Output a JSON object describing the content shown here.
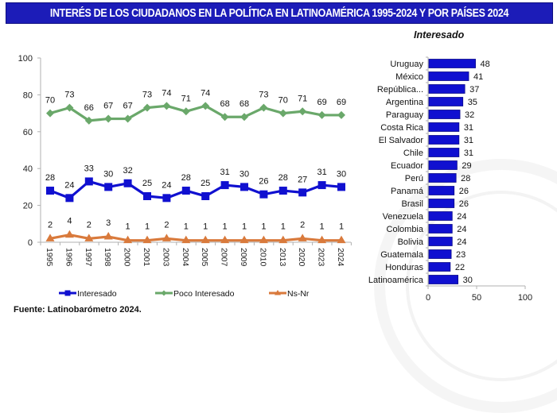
{
  "header": {
    "title": "INTERÉS DE LOS CIUDADANOS EN LA POLÍTICA EN LATINOAMÉRICA 1995-2024 Y POR PAÍSES 2024"
  },
  "footer": {
    "source": "Fuente: Latinobarómetro 2024."
  },
  "colors": {
    "title_bg": "#1c1cb8",
    "interesado": "#1010d0",
    "poco_interesado": "#6aa86a",
    "ns_nr": "#d97a3c"
  },
  "chart_data": [
    {
      "type": "line",
      "title": "",
      "xlabel": "",
      "ylabel": "",
      "ylim": [
        0,
        100
      ],
      "yticks": [
        0,
        20,
        40,
        60,
        80,
        100
      ],
      "grid": false,
      "legend_position": "bottom",
      "x": [
        "1995",
        "1996",
        "1997",
        "1998",
        "2000",
        "2001",
        "2003",
        "2004",
        "2005",
        "2007",
        "2009",
        "2010",
        "2013",
        "2020",
        "2023",
        "2024"
      ],
      "series": [
        {
          "name": "Interesado",
          "marker": "square",
          "color": "#1010d0",
          "values": [
            28,
            24,
            33,
            30,
            32,
            25,
            24,
            28,
            25,
            31,
            30,
            26,
            28,
            27,
            31,
            30
          ]
        },
        {
          "name": "Poco Interesado",
          "marker": "diamond",
          "color": "#6aa86a",
          "values": [
            70,
            73,
            66,
            67,
            67,
            73,
            74,
            71,
            74,
            68,
            68,
            73,
            70,
            71,
            69,
            69
          ]
        },
        {
          "name": "Ns-Nr",
          "marker": "triangle",
          "color": "#d97a3c",
          "values": [
            2,
            4,
            2,
            3,
            1,
            1,
            2,
            1,
            1,
            1,
            1,
            1,
            1,
            2,
            1,
            1
          ]
        }
      ]
    },
    {
      "type": "bar",
      "orientation": "horizontal",
      "title": "Interesado",
      "xlim": [
        0,
        100
      ],
      "xticks": [
        0,
        50,
        100
      ],
      "color": "#1010d0",
      "categories": [
        "Uruguay",
        "México",
        "República...",
        "Argentina",
        "Paraguay",
        "Costa Rica",
        "El Salvador",
        "Chile",
        "Ecuador",
        "Perú",
        "Panamá",
        "Brasil",
        "Venezuela",
        "Colombia",
        "Bolivia",
        "Guatemala",
        "Honduras",
        "Latinoamérica"
      ],
      "values": [
        48,
        41,
        37,
        35,
        32,
        31,
        31,
        31,
        29,
        28,
        26,
        26,
        24,
        24,
        24,
        23,
        22,
        30
      ]
    }
  ]
}
